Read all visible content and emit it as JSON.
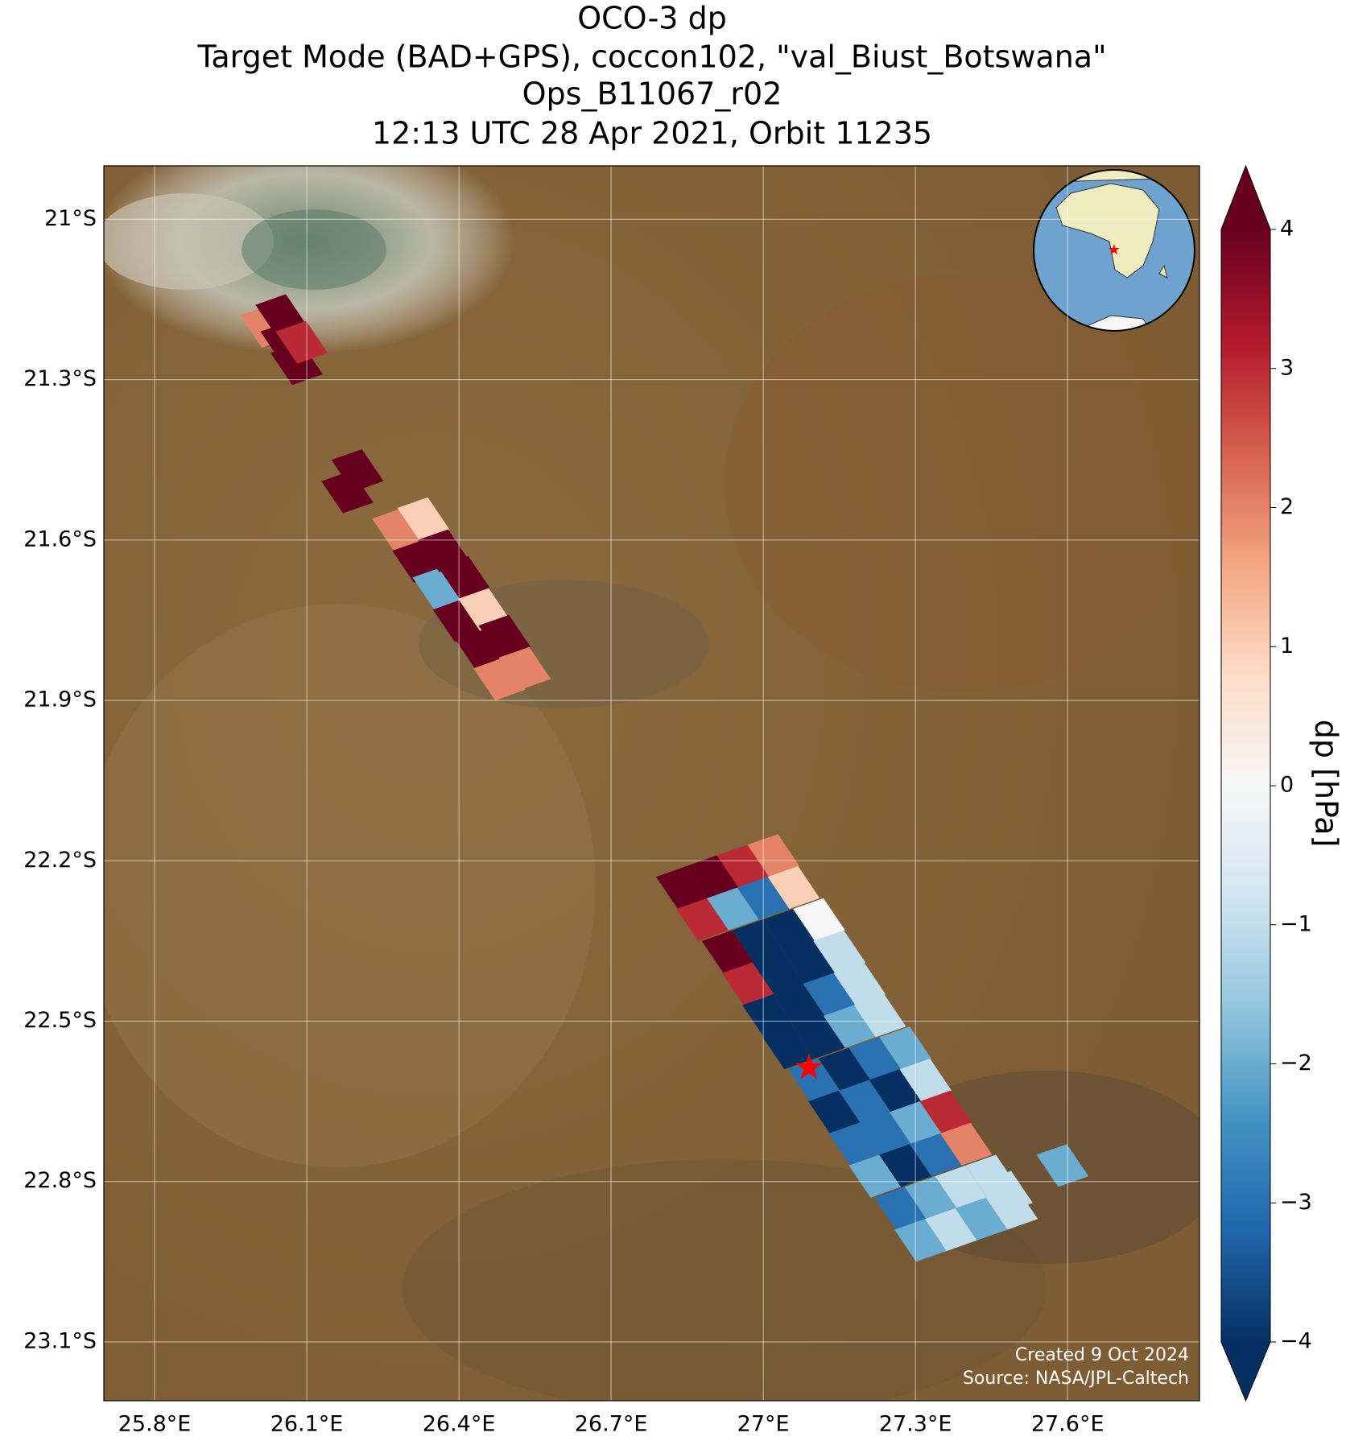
{
  "map": {
    "title": [
      "OCO-3 dp",
      "Target Mode (BAD+GPS), coccon102, \"val_Biust_Botswana\"",
      "Ops_B11067_r02",
      "12:13 UTC 28 Apr 2021, Orbit 11235"
    ],
    "lonlim": [
      25.7,
      27.86
    ],
    "latlim": [
      -23.21,
      -20.9
    ],
    "lonticks": [
      {
        "value": 25.8,
        "label": "25.8°E"
      },
      {
        "value": 26.1,
        "label": "26.1°E"
      },
      {
        "value": 26.4,
        "label": "26.4°E"
      },
      {
        "value": 26.7,
        "label": "26.7°E"
      },
      {
        "value": 27.0,
        "label": "27°E"
      },
      {
        "value": 27.3,
        "label": "27.3°E"
      },
      {
        "value": 27.6,
        "label": "27.6°E"
      }
    ],
    "latticks": [
      {
        "value": -21.0,
        "label": "21°S"
      },
      {
        "value": -21.3,
        "label": "21.3°S"
      },
      {
        "value": -21.6,
        "label": "21.6°S"
      },
      {
        "value": -21.9,
        "label": "21.9°S"
      },
      {
        "value": -22.2,
        "label": "22.2°S"
      },
      {
        "value": -22.5,
        "label": "22.5°S"
      },
      {
        "value": -22.8,
        "label": "22.8°S"
      },
      {
        "value": -23.1,
        "label": "23.1°S"
      }
    ],
    "grid": true,
    "target": {
      "lon": 27.09,
      "lat": -22.59,
      "color": "#ff0000"
    },
    "soundings": {
      "lon": [
        26.84,
        26.88,
        26.93,
        26.97,
        27.01,
        27.05,
        27.1,
        27.14,
        27.18,
        27.22,
        27.27,
        27.31,
        26.9,
        26.94,
        26.99,
        27.03,
        27.07,
        27.11,
        27.16,
        27.2,
        27.24,
        27.28,
        27.33,
        27.37,
        26.96,
        27.0,
        27.05,
        27.09,
        27.13,
        27.17,
        27.22,
        27.26,
        27.3,
        27.34,
        27.39,
        27.43,
        27.02,
        27.06,
        27.11,
        27.15,
        27.19,
        27.23,
        27.28,
        27.32,
        27.36,
        27.4,
        27.45,
        27.49,
        26.28,
        26.32,
        26.36,
        26.4,
        26.44,
        26.48,
        26.33,
        26.37,
        26.41,
        26.45,
        26.49,
        26.53,
        26.2,
        26.18,
        26.02,
        26.05,
        26.06,
        26.08,
        26.09,
        27.59,
        27.48
      ],
      "lat": [
        -22.25,
        -22.31,
        -22.37,
        -22.43,
        -22.49,
        -22.55,
        -22.61,
        -22.67,
        -22.73,
        -22.79,
        -22.85,
        -22.91,
        -22.23,
        -22.29,
        -22.35,
        -22.41,
        -22.47,
        -22.53,
        -22.59,
        -22.65,
        -22.71,
        -22.77,
        -22.83,
        -22.89,
        -22.21,
        -22.27,
        -22.33,
        -22.39,
        -22.45,
        -22.51,
        -22.57,
        -22.63,
        -22.69,
        -22.75,
        -22.81,
        -22.87,
        -22.19,
        -22.25,
        -22.31,
        -22.37,
        -22.43,
        -22.49,
        -22.55,
        -22.61,
        -22.67,
        -22.73,
        -22.79,
        -22.85,
        -21.58,
        -21.64,
        -21.69,
        -21.75,
        -21.8,
        -21.86,
        -21.56,
        -21.62,
        -21.67,
        -21.73,
        -21.78,
        -21.84,
        -21.47,
        -21.51,
        -21.2,
        -21.18,
        -21.23,
        -21.27,
        -21.23,
        -22.77,
        -22.82
      ],
      "dp": [
        4,
        3,
        4,
        3,
        -4,
        -4,
        -3,
        -4,
        -3,
        -2,
        -3,
        -2,
        4,
        -2,
        -4,
        -4,
        -4,
        -4,
        -4,
        -3,
        -3,
        -4,
        -2,
        -1,
        3,
        -3,
        -4,
        -4,
        -3,
        -2,
        -3,
        -4,
        -2,
        -3,
        -1,
        -2,
        2,
        1,
        0,
        -1,
        -1,
        -1,
        -2,
        -1,
        3,
        2,
        -1,
        -1,
        2,
        4,
        -2,
        4,
        4,
        2,
        1,
        4,
        4,
        1,
        4,
        2,
        4,
        4,
        2,
        4,
        4,
        4,
        3,
        -2,
        -1
      ]
    },
    "colormap": [
      "#053061",
      "#2166ac",
      "#4393c3",
      "#92c5de",
      "#d1e5f0",
      "#f7f7f7",
      "#fddbc7",
      "#f4a582",
      "#d6604d",
      "#b2182b",
      "#67001f"
    ],
    "colorbar": {
      "label": "dp [hPa]",
      "lim": [
        -4,
        4
      ],
      "ticks": [
        {
          "value": -4,
          "label": "−4"
        },
        {
          "value": -3,
          "label": "−3"
        },
        {
          "value": -2,
          "label": "−2"
        },
        {
          "value": -1,
          "label": "−1"
        },
        0,
        1,
        2,
        3,
        4
      ]
    },
    "annotations": [
      "Created 9 Oct 2024",
      "Source: NASA/JPL-Caltech"
    ]
  }
}
